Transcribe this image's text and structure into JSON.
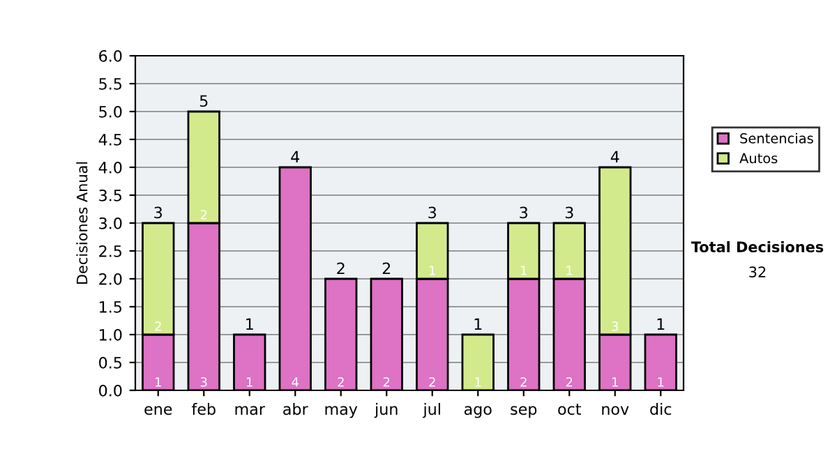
{
  "chart_data": {
    "type": "bar",
    "stacked": true,
    "ylabel": "Decisiones Anual",
    "categories": [
      "ene",
      "feb",
      "mar",
      "abr",
      "may",
      "jun",
      "jul",
      "ago",
      "sep",
      "oct",
      "nov",
      "dic"
    ],
    "series": [
      {
        "name": "Sentencias",
        "color": "#de72c4",
        "values": [
          1,
          3,
          1,
          4,
          2,
          2,
          2,
          0,
          2,
          2,
          1,
          1
        ],
        "value_labels": [
          "1",
          "3",
          "1",
          "4",
          "2",
          "2",
          "2",
          null,
          "2",
          "2",
          "1",
          "1"
        ]
      },
      {
        "name": "Autos",
        "color": "#d3ea8c",
        "values": [
          2,
          2,
          0,
          0,
          0,
          0,
          1,
          1,
          1,
          1,
          3,
          0
        ],
        "value_labels": [
          "2",
          "2",
          null,
          null,
          null,
          null,
          "1",
          "1",
          "1",
          "1",
          "3",
          null
        ]
      }
    ],
    "totals": [
      "3",
      "5",
      "1",
      "4",
      "2",
      "2",
      "3",
      "1",
      "3",
      "3",
      "4",
      "1"
    ],
    "ylim": [
      0,
      6
    ],
    "yticks": [
      {
        "value": 0,
        "label": "0.0"
      },
      {
        "value": 0.5,
        "label": "0.5"
      },
      {
        "value": 1,
        "label": "1.0"
      },
      {
        "value": 1.5,
        "label": "1.5"
      },
      {
        "value": 2,
        "label": "2.0"
      },
      {
        "value": 2.5,
        "label": "2.5"
      },
      {
        "value": 3,
        "label": "3.0"
      },
      {
        "value": 3.5,
        "label": "3.5"
      },
      {
        "value": 4,
        "label": "4.0"
      },
      {
        "value": 4.5,
        "label": "4.5"
      },
      {
        "value": 5,
        "label": "5.0"
      },
      {
        "value": 5.5,
        "label": "5.5"
      },
      {
        "value": 6,
        "label": "6.0"
      }
    ],
    "grid": "y",
    "legend": "right",
    "annotations": [
      "Total Decisiones",
      "32"
    ]
  }
}
